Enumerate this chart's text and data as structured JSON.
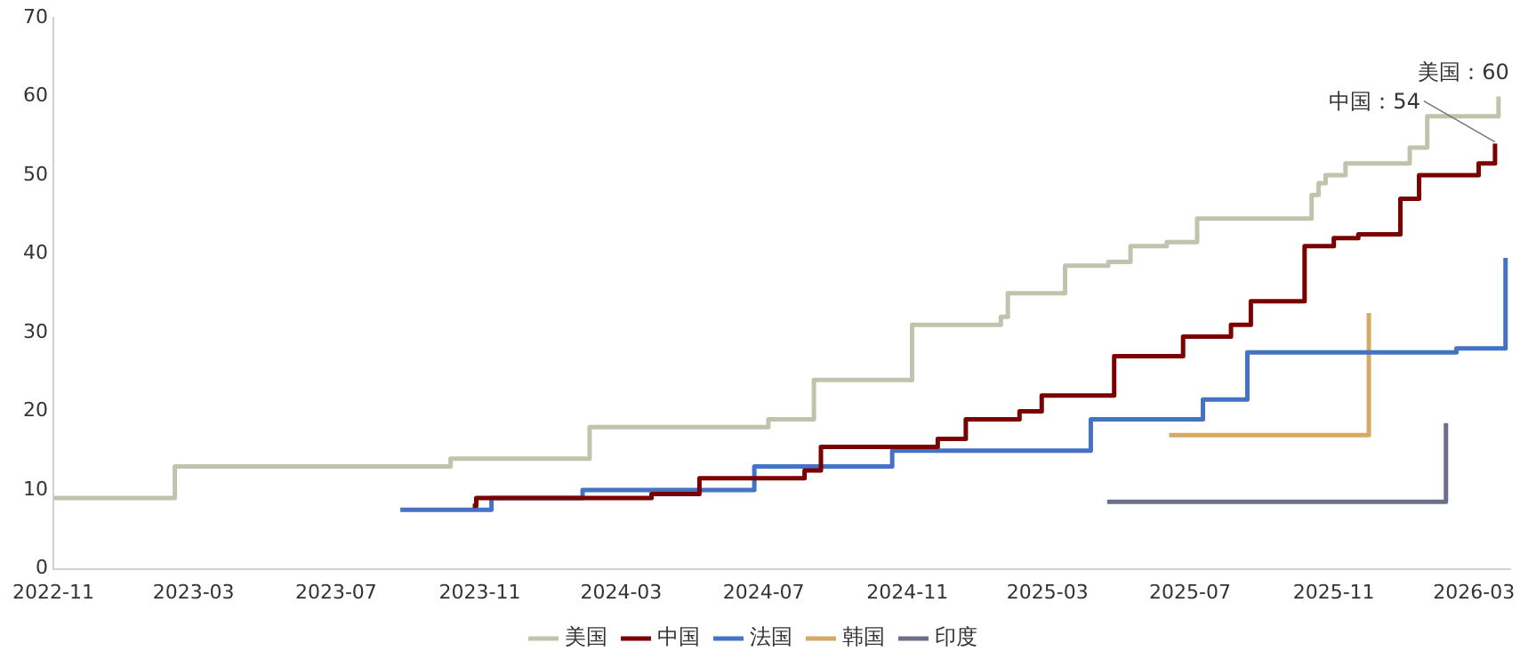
{
  "chart_data": {
    "type": "step",
    "xlim": [
      "2022-11",
      "2026-04"
    ],
    "xticks": [
      "2022-11",
      "2023-03",
      "2023-07",
      "2023-11",
      "2024-03",
      "2024-07",
      "2024-11",
      "2025-03",
      "2025-07",
      "2025-11",
      "2026-03"
    ],
    "ylim": [
      0,
      70
    ],
    "yticks": [
      0,
      10,
      20,
      30,
      40,
      50,
      60,
      70
    ],
    "grid": false,
    "legend": "bottom",
    "marker": "none",
    "line_style": "solid",
    "series": [
      {
        "name": "美国",
        "color": "#c0c4ad",
        "x": [
          "2022-11-01",
          "2023-02-13",
          "2023-10-07",
          "2024-02-03",
          "2024-07-05",
          "2024-08-13",
          "2024-11-05",
          "2025-01-20",
          "2025-01-26",
          "2025-03-16",
          "2025-04-22",
          "2025-05-11",
          "2025-06-11",
          "2025-07-07",
          "2025-10-13",
          "2025-10-19",
          "2025-10-25",
          "2025-11-11",
          "2026-01-05",
          "2026-01-20",
          "2026-03-22"
        ],
        "values": [
          9,
          13,
          14,
          18,
          19,
          24,
          31,
          32,
          35,
          38.5,
          39,
          41,
          41.5,
          44.5,
          47.5,
          49,
          50,
          51.5,
          53.5,
          57.5,
          60
        ]
      },
      {
        "name": "中国",
        "color": "#7b0000",
        "x": [
          "2023-10-26",
          "2023-10-29",
          "2024-03-27",
          "2024-05-07",
          "2024-08-05",
          "2024-08-19",
          "2024-11-27",
          "2024-12-21",
          "2025-02-05",
          "2025-02-24",
          "2025-04-27",
          "2025-06-25",
          "2025-08-05",
          "2025-08-22",
          "2025-10-07",
          "2025-11-01",
          "2025-11-22",
          "2025-12-28",
          "2026-01-13",
          "2026-03-05",
          "2026-03-19"
        ],
        "values": [
          8,
          9,
          9.5,
          11.5,
          12.5,
          15.5,
          16.5,
          19,
          20,
          22,
          27,
          29.5,
          31,
          34,
          41,
          42,
          42.5,
          47,
          50,
          51.5,
          54
        ]
      },
      {
        "name": "法国",
        "color": "#4472c4",
        "x": [
          "2023-08-25",
          "2023-11-11",
          "2024-01-28",
          "2024-06-23",
          "2024-10-19",
          "2025-04-07",
          "2025-07-12",
          "2025-08-19",
          "2026-02-14",
          "2026-03-28"
        ],
        "values": [
          7.5,
          9,
          10,
          13,
          15,
          19,
          21.5,
          27.5,
          28,
          39.5
        ]
      },
      {
        "name": "韩国",
        "color": "#d4aa64",
        "x": [
          "2025-06-13",
          "2025-12-01"
        ],
        "values": [
          17,
          32.5
        ]
      },
      {
        "name": "印度",
        "color": "#6b7088",
        "x": [
          "2025-04-21",
          "2026-02-05"
        ],
        "values": [
          8.5,
          18.5
        ]
      }
    ],
    "annotations": [
      {
        "text": "美国：60",
        "x": "2026-03-22",
        "y": 60
      },
      {
        "text": "中国：54",
        "x": "2026-03-19",
        "y": 54
      }
    ]
  }
}
